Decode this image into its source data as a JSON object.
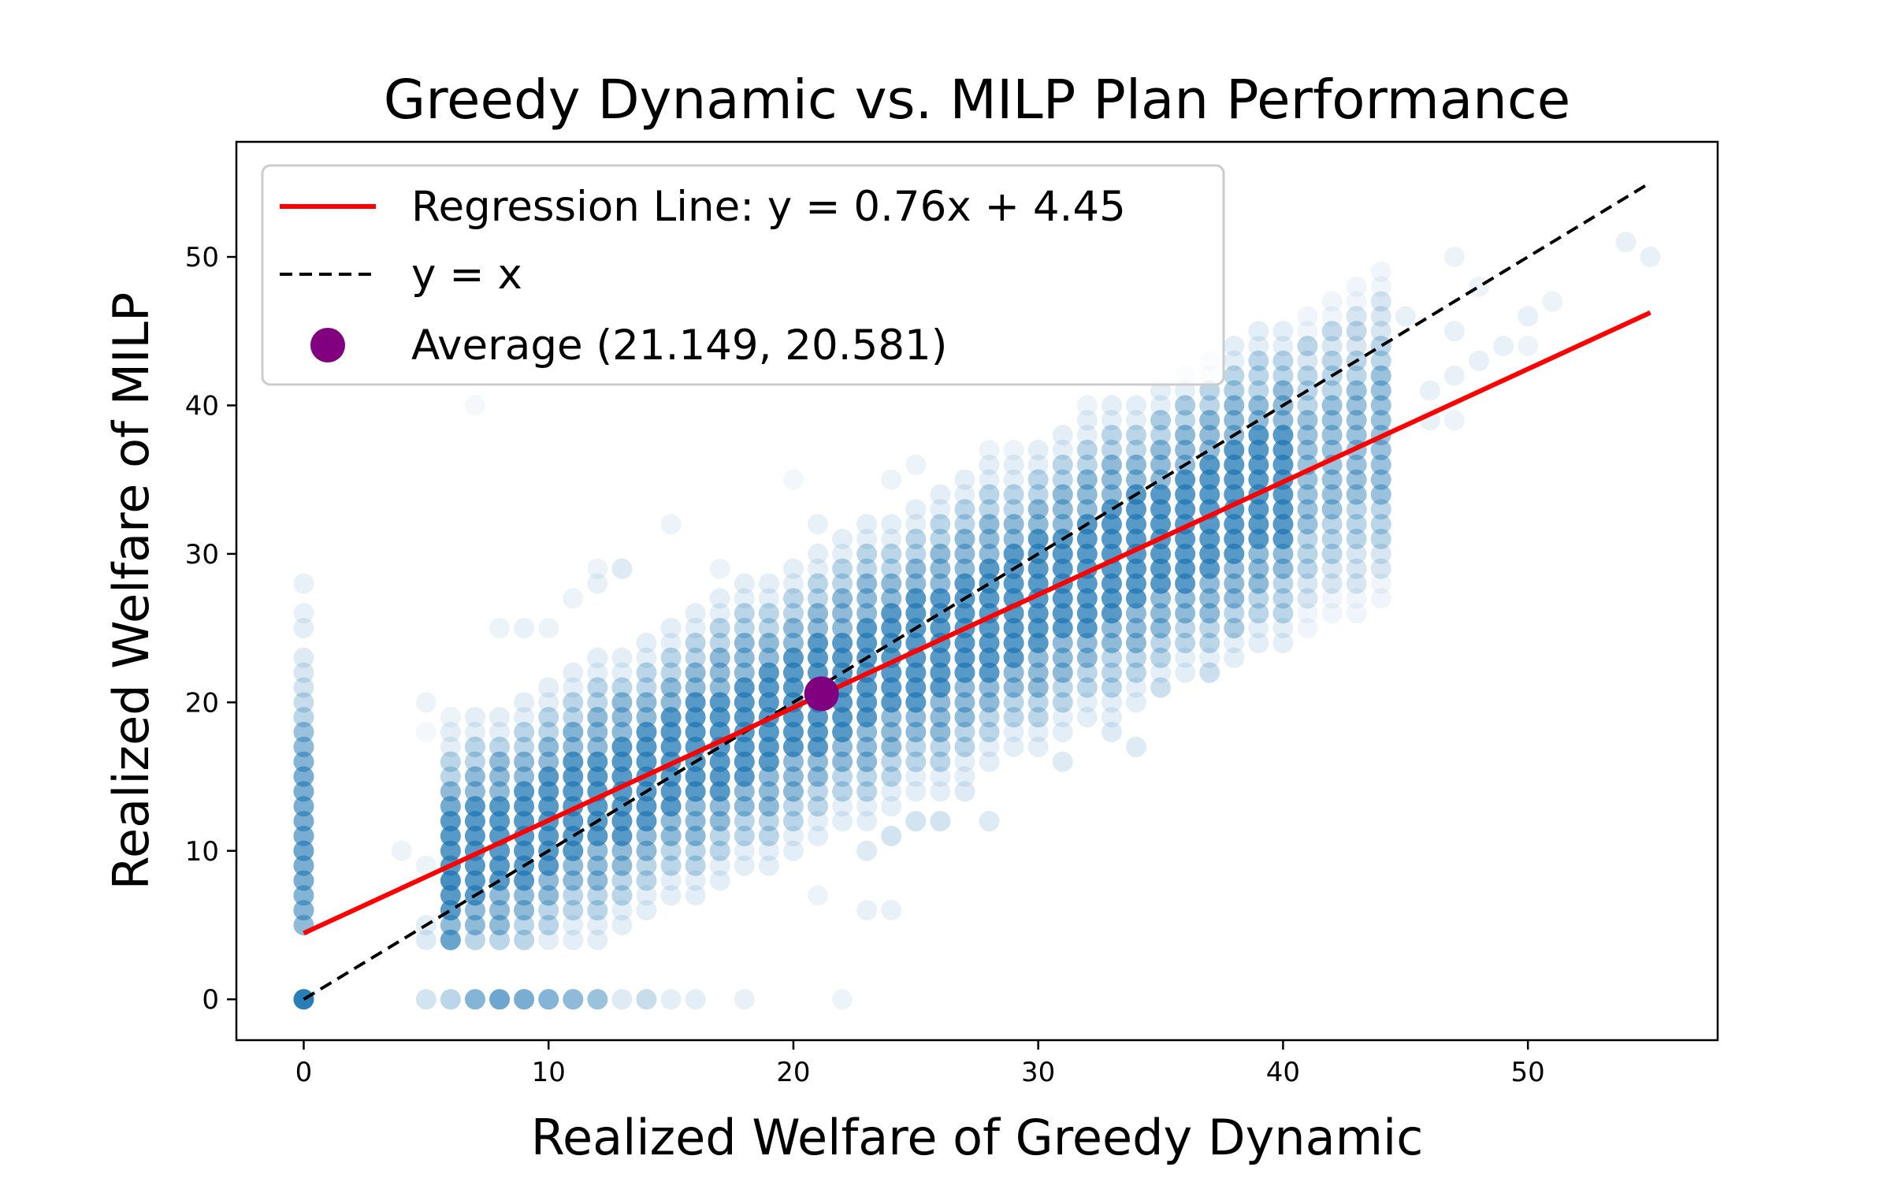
{
  "chart_data": {
    "type": "scatter",
    "title": "Greedy Dynamic vs. MILP Plan Performance",
    "xlabel": "Realized Welfare of Greedy Dynamic",
    "ylabel": "Realized Welfare of MILP",
    "xlim": [
      -2.75,
      57.75
    ],
    "ylim": [
      -2.75,
      57.75
    ],
    "x_ticks": [
      0,
      10,
      20,
      30,
      40,
      50
    ],
    "y_ticks": [
      0,
      10,
      20,
      30,
      40,
      50
    ],
    "grid": false,
    "legend_position": "top-left",
    "regression": {
      "label": "Regression Line: y = 0.76x + 4.45",
      "slope": 0.76,
      "intercept": 4.45,
      "x_range": [
        0,
        55
      ],
      "color": "#ff0000"
    },
    "identity": {
      "label": "y = x",
      "x_range": [
        0,
        55
      ],
      "color": "#000000"
    },
    "average": {
      "label": "Average (21.149, 20.581)",
      "x": 21.149,
      "y": 20.581,
      "color": "#800080"
    },
    "scatter_color": "#1f77b4",
    "scatter_points": [
      [
        0,
        0,
        0.95
      ],
      [
        0,
        5,
        0.5
      ],
      [
        0,
        6,
        0.55
      ],
      [
        0,
        7,
        0.55
      ],
      [
        0,
        8,
        0.6
      ],
      [
        0,
        9,
        0.6
      ],
      [
        0,
        10,
        0.65
      ],
      [
        0,
        11,
        0.6
      ],
      [
        0,
        12,
        0.6
      ],
      [
        0,
        13,
        0.6
      ],
      [
        0,
        14,
        0.6
      ],
      [
        0,
        15,
        0.6
      ],
      [
        0,
        16,
        0.55
      ],
      [
        0,
        17,
        0.5
      ],
      [
        0,
        18,
        0.45
      ],
      [
        0,
        19,
        0.3
      ],
      [
        0,
        20,
        0.25
      ],
      [
        0,
        21,
        0.2
      ],
      [
        0,
        22,
        0.18
      ],
      [
        0,
        23,
        0.15
      ],
      [
        0,
        25,
        0.12
      ],
      [
        0,
        26,
        0.1
      ],
      [
        0,
        28,
        0.1
      ],
      [
        5,
        0,
        0.2
      ],
      [
        6,
        0,
        0.3
      ],
      [
        7,
        0,
        0.55
      ],
      [
        8,
        0,
        0.65
      ],
      [
        9,
        0,
        0.6
      ],
      [
        10,
        0,
        0.55
      ],
      [
        11,
        0,
        0.5
      ],
      [
        12,
        0,
        0.45
      ],
      [
        13,
        0,
        0.15
      ],
      [
        14,
        0,
        0.25
      ],
      [
        15,
        0,
        0.12
      ],
      [
        16,
        0,
        0.12
      ],
      [
        18,
        0,
        0.1
      ],
      [
        22,
        0,
        0.08
      ],
      [
        4,
        10,
        0.08
      ],
      [
        5,
        4,
        0.15
      ],
      [
        5,
        5,
        0.12
      ],
      [
        5,
        9,
        0.08
      ],
      [
        5,
        20,
        0.08
      ],
      [
        5,
        18,
        0.05
      ],
      [
        6,
        4,
        0.35
      ],
      [
        6,
        8,
        0.3
      ],
      [
        6,
        13,
        0.25
      ],
      [
        6,
        19,
        0.08
      ],
      [
        7,
        40,
        0.05
      ],
      [
        38,
        41,
        0.08
      ],
      [
        41,
        44,
        0.15
      ],
      [
        42,
        45,
        0.1
      ],
      [
        43,
        45,
        0.1
      ],
      [
        45,
        46,
        0.1
      ],
      [
        47,
        50,
        0.08
      ],
      [
        47,
        45,
        0.1
      ],
      [
        48,
        43,
        0.1
      ],
      [
        48,
        48,
        0.08
      ],
      [
        49,
        44,
        0.1
      ],
      [
        50,
        46,
        0.1
      ],
      [
        50,
        44,
        0.08
      ],
      [
        51,
        47,
        0.08
      ],
      [
        54,
        51,
        0.1
      ],
      [
        55,
        50,
        0.1
      ],
      [
        46,
        41,
        0.1
      ],
      [
        46,
        39,
        0.1
      ],
      [
        47,
        39,
        0.08
      ],
      [
        47,
        42,
        0.1
      ],
      [
        31,
        16,
        0.15
      ],
      [
        33,
        18,
        0.15
      ],
      [
        34,
        17,
        0.15
      ],
      [
        35,
        21,
        0.12
      ],
      [
        37,
        22,
        0.12
      ],
      [
        38,
        25,
        0.1
      ],
      [
        35,
        39,
        0.1
      ],
      [
        36,
        40,
        0.1
      ],
      [
        32,
        40,
        0.08
      ],
      [
        29,
        37,
        0.08
      ],
      [
        28,
        37,
        0.08
      ],
      [
        25,
        36,
        0.08
      ],
      [
        24,
        35,
        0.08
      ],
      [
        20,
        35,
        0.06
      ],
      [
        21,
        32,
        0.1
      ],
      [
        15,
        32,
        0.08
      ],
      [
        17,
        29,
        0.08
      ],
      [
        13,
        29,
        0.15
      ],
      [
        12,
        29,
        0.08
      ],
      [
        12,
        28,
        0.1
      ],
      [
        11,
        27,
        0.08
      ],
      [
        11,
        18,
        0.1
      ],
      [
        10,
        25,
        0.08
      ],
      [
        9,
        25,
        0.1
      ],
      [
        8,
        25,
        0.08
      ],
      [
        24,
        6,
        0.1
      ],
      [
        23,
        6,
        0.1
      ],
      [
        23,
        10,
        0.15
      ],
      [
        24,
        11,
        0.2
      ],
      [
        25,
        12,
        0.2
      ],
      [
        26,
        12,
        0.2
      ],
      [
        28,
        12,
        0.15
      ],
      [
        27,
        14,
        0.15
      ],
      [
        21,
        7,
        0.08
      ]
    ]
  },
  "colors": {
    "background": "#ffffff",
    "axes": "#000000"
  }
}
